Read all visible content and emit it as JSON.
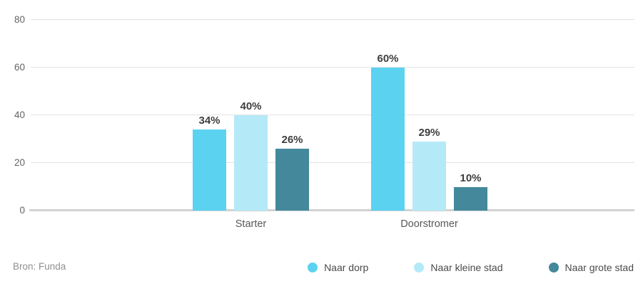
{
  "chart_data": {
    "type": "bar",
    "categories": [
      "Starter",
      "Doorstromer"
    ],
    "series": [
      {
        "name": "Naar dorp",
        "color": "#5cd2f1",
        "values": [
          34,
          60
        ]
      },
      {
        "name": "Naar kleine stad",
        "color": "#b4eaf7",
        "values": [
          40,
          29
        ]
      },
      {
        "name": "Naar grote stad",
        "color": "#44889b",
        "values": [
          26,
          10
        ]
      }
    ],
    "value_suffix": "%",
    "ylim": [
      0,
      80
    ],
    "yticks": [
      0,
      20,
      40,
      60,
      80
    ],
    "grid": true,
    "legend_position": "bottom-right"
  },
  "footer": {
    "source": "Bron: Funda"
  },
  "colors": {
    "gridline": "#e3e3e3",
    "baseline": "#d3d3d3",
    "value_label": "#3e3e3e",
    "tick_label": "#636363"
  }
}
